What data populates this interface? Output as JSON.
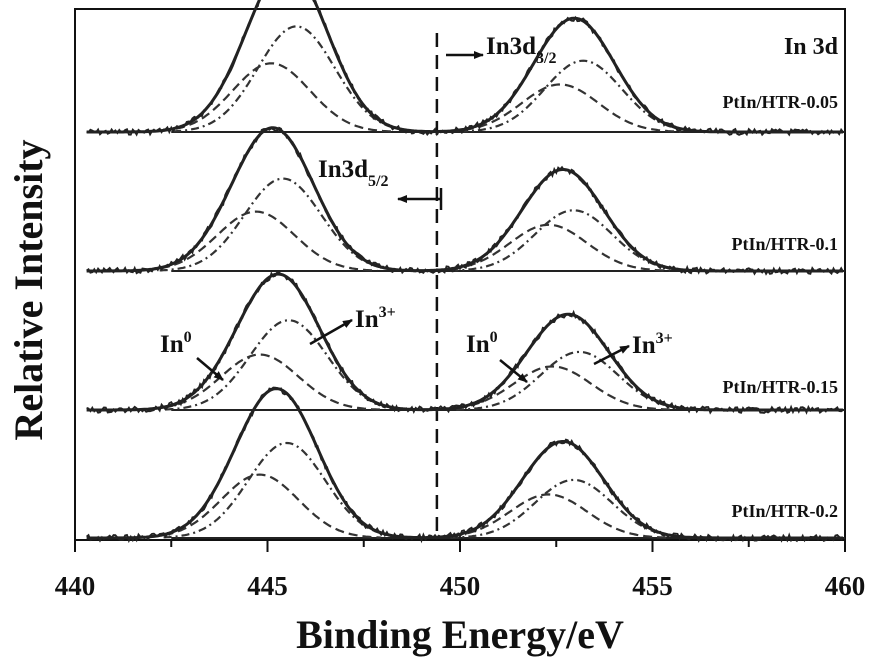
{
  "chart_data": {
    "type": "line",
    "title": "In 3d",
    "xlabel": "Binding Energy/eV",
    "ylabel": "Relative Intensity",
    "xlim": [
      440,
      460
    ],
    "x_ticks": [
      440,
      445,
      450,
      455,
      460
    ],
    "x_tick_labels": [
      "440",
      "445",
      "450",
      "455",
      "460"
    ],
    "y_ticks_shown": false,
    "reference_line_x": 449.4,
    "spectra": [
      {
        "name": "PtIn/HTR-0.05",
        "peaks": [
          {
            "region": "In3d5/2",
            "component": "In0",
            "center": 445.1,
            "height": 0.52
          },
          {
            "region": "In3d5/2",
            "component": "In3+",
            "center": 445.75,
            "height": 0.8
          },
          {
            "region": "In3d3/2",
            "component": "In0",
            "center": 452.6,
            "height": 0.36
          },
          {
            "region": "In3d3/2",
            "component": "In3+",
            "center": 453.2,
            "height": 0.54
          }
        ]
      },
      {
        "name": "PtIn/HTR-0.1",
        "peaks": [
          {
            "region": "In3d5/2",
            "component": "In0",
            "center": 444.7,
            "height": 0.45
          },
          {
            "region": "In3d5/2",
            "component": "In3+",
            "center": 445.4,
            "height": 0.7
          },
          {
            "region": "In3d3/2",
            "component": "In0",
            "center": 452.3,
            "height": 0.35
          },
          {
            "region": "In3d3/2",
            "component": "In3+",
            "center": 452.95,
            "height": 0.46
          }
        ]
      },
      {
        "name": "PtIn/HTR-0.15",
        "peaks": [
          {
            "region": "In3d5/2",
            "component": "In0",
            "center": 444.8,
            "height": 0.42
          },
          {
            "region": "In3d5/2",
            "component": "In3+",
            "center": 445.55,
            "height": 0.68
          },
          {
            "region": "In3d3/2",
            "component": "In0",
            "center": 452.4,
            "height": 0.33
          },
          {
            "region": "In3d3/2",
            "component": "In3+",
            "center": 453.1,
            "height": 0.44
          }
        ]
      },
      {
        "name": "PtIn/HTR-0.2",
        "peaks": [
          {
            "region": "In3d5/2",
            "component": "In0",
            "center": 444.8,
            "height": 0.48
          },
          {
            "region": "In3d5/2",
            "component": "In3+",
            "center": 445.5,
            "height": 0.72
          },
          {
            "region": "In3d3/2",
            "component": "In0",
            "center": 452.3,
            "height": 0.33
          },
          {
            "region": "In3d3/2",
            "component": "In3+",
            "center": 452.95,
            "height": 0.44
          }
        ]
      }
    ],
    "annotations": {
      "in3d32": {
        "main": "In3d",
        "sub": "3/2"
      },
      "in3d52": {
        "main": "In3d",
        "sub": "5/2"
      },
      "in0_left": {
        "main": "In",
        "sup": "0"
      },
      "in3_left": {
        "main": "In",
        "sup": "3+"
      },
      "in0_right": {
        "main": "In",
        "sup": "0"
      },
      "in3_right": {
        "main": "In",
        "sup": "3+"
      }
    }
  }
}
